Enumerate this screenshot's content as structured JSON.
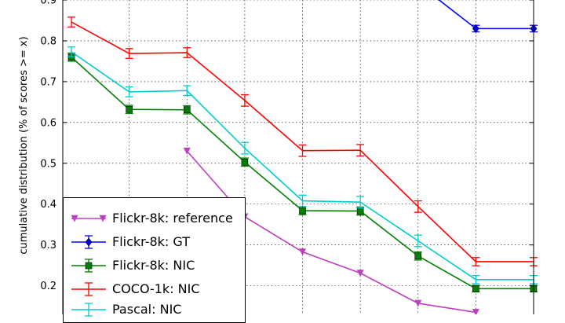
{
  "chart_data": {
    "type": "line",
    "ylabel": "cumulative distribution (% of scores >= x)",
    "ylim": [
      0.13,
      0.9
    ],
    "yticks": [
      0.2,
      0.3,
      0.4,
      0.5,
      0.6,
      0.7,
      0.8,
      0.9
    ],
    "ytick_labels": [
      "0.2",
      "0.3",
      "0.4",
      "0.5",
      "0.6",
      "0.7",
      "0.8",
      "0.9"
    ],
    "x": [
      1,
      2,
      3,
      4,
      5,
      6,
      7,
      8,
      9
    ],
    "xlim": [
      0.85,
      9.0
    ],
    "grid": "dotted",
    "legend_position": "lower-left",
    "series": [
      {
        "name": "Flickr-8k: reference",
        "color": "#bf40bf",
        "marker": "triangle-down",
        "x": [
          3,
          4,
          5,
          6,
          7,
          8
        ],
        "y": [
          0.53,
          0.369,
          0.283,
          0.231,
          0.157,
          0.135
        ],
        "err": [
          0,
          0,
          0,
          0,
          0,
          0
        ]
      },
      {
        "name": "Flickr-8k: GT",
        "color": "#0000ff",
        "marker": "diamond",
        "x": [
          7,
          8,
          9
        ],
        "y": [
          0.94,
          0.83,
          0.83
        ],
        "err": [
          0.008,
          0.008,
          0.008
        ]
      },
      {
        "name": "Flickr-8k: NIC",
        "color": "#008000",
        "marker": "square",
        "x": [
          1,
          2,
          3,
          4,
          5,
          6,
          7,
          8,
          9
        ],
        "y": [
          0.76,
          0.632,
          0.631,
          0.503,
          0.384,
          0.383,
          0.273,
          0.193,
          0.193
        ],
        "err": [
          0.01,
          0.01,
          0.01,
          0.01,
          0.01,
          0.01,
          0.01,
          0.008,
          0.008
        ]
      },
      {
        "name": "COCO-1k: NIC",
        "color": "#ff0000",
        "marker": "none",
        "x": [
          1,
          2,
          3,
          4,
          5,
          6,
          7,
          8,
          9
        ],
        "y": [
          0.846,
          0.769,
          0.771,
          0.654,
          0.531,
          0.532,
          0.394,
          0.259,
          0.259
        ],
        "err": [
          0.012,
          0.012,
          0.012,
          0.014,
          0.014,
          0.014,
          0.014,
          0.01,
          0.01
        ]
      },
      {
        "name": "Pascal: NIC",
        "color": "#00cccc",
        "marker": "none",
        "x": [
          1,
          2,
          3,
          4,
          5,
          6,
          7,
          8,
          9
        ],
        "y": [
          0.773,
          0.675,
          0.678,
          0.537,
          0.408,
          0.405,
          0.31,
          0.215,
          0.215
        ],
        "err": [
          0.012,
          0.012,
          0.012,
          0.014,
          0.014,
          0.014,
          0.014,
          0.01,
          0.01
        ]
      }
    ]
  }
}
